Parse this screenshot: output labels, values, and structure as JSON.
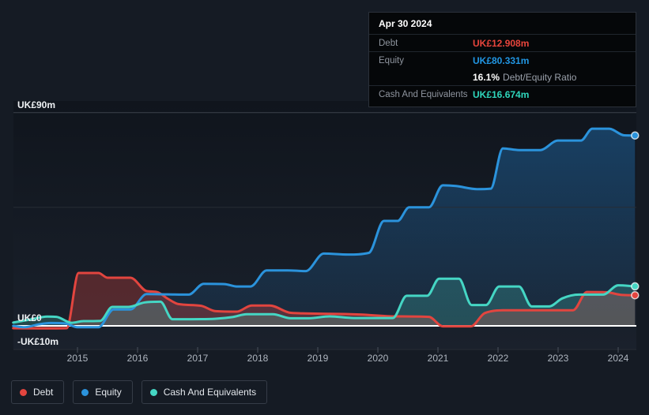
{
  "colors": {
    "debt": "#e2453f",
    "equity": "#2b93dc",
    "cash": "#45d6c4",
    "debt_fill": "rgba(226,69,63,0.30)",
    "equity_fill_top": "rgba(35,125,200,0.42)",
    "equity_fill_bottom": "rgba(35,125,200,0.10)",
    "cash_fill": "rgba(79,216,198,0.22)",
    "grid": "#3c434c",
    "grid_faint": "#262c35",
    "zero_line": "#ffffff",
    "tick": "#4a515c",
    "plot_bg_top": "#10151d",
    "plot_bg_bottom": "#1a212c"
  },
  "tooltip": {
    "date": "Apr 30 2024",
    "debt_label": "Debt",
    "debt_value": "UK£12.908m",
    "equity_label": "Equity",
    "equity_value": "UK£80.331m",
    "ratio_value": "16.1%",
    "ratio_label": "Debt/Equity Ratio",
    "cash_label": "Cash And Equivalents",
    "cash_value": "UK£16.674m"
  },
  "legend": {
    "items": [
      {
        "id": "debt",
        "label": "Debt"
      },
      {
        "id": "equity",
        "label": "Equity"
      },
      {
        "id": "cash",
        "label": "Cash And Equivalents"
      }
    ]
  },
  "axis": {
    "y_labels": [
      {
        "text": "UK£90m",
        "value": 90
      },
      {
        "text": "UK£0",
        "value": 0
      },
      {
        "text": "-UK£10m",
        "value": -10
      }
    ],
    "gridlines": [
      {
        "value": 90,
        "style": "normal"
      },
      {
        "value": 50,
        "style": "faint"
      },
      {
        "value": 0,
        "style": "zero"
      },
      {
        "value": -10,
        "style": "faint"
      }
    ],
    "x_ticks": [
      2015,
      2016,
      2017,
      2018,
      2019,
      2020,
      2021,
      2022,
      2023,
      2024
    ]
  },
  "chart_data": {
    "type": "area",
    "x_unit": "year",
    "xlim": [
      2013.93,
      2024.28
    ],
    "ylim": [
      -10,
      90
    ],
    "currency_unit": "UK£m",
    "legend_position": "bottom-left",
    "series": [
      {
        "name": "Equity",
        "color": "equity",
        "fill": "equity-gradient",
        "points": [
          [
            2013.93,
            0
          ],
          [
            2014.12,
            -0.6
          ],
          [
            2014.35,
            0.6
          ],
          [
            2014.55,
            1.2
          ],
          [
            2014.8,
            1.0
          ],
          [
            2015.0,
            -0.6
          ],
          [
            2015.35,
            -0.6
          ],
          [
            2015.6,
            6.9
          ],
          [
            2015.88,
            6.9
          ],
          [
            2016.15,
            13.4
          ],
          [
            2016.5,
            13.3
          ],
          [
            2016.85,
            13.2
          ],
          [
            2017.1,
            17.7
          ],
          [
            2017.45,
            17.6
          ],
          [
            2017.65,
            16.6
          ],
          [
            2017.88,
            16.6
          ],
          [
            2018.15,
            23.4
          ],
          [
            2018.5,
            23.4
          ],
          [
            2018.8,
            23.1
          ],
          [
            2019.1,
            30.5
          ],
          [
            2019.5,
            30.1
          ],
          [
            2019.85,
            30.8
          ],
          [
            2020.1,
            44.3
          ],
          [
            2020.33,
            44.3
          ],
          [
            2020.52,
            50.0
          ],
          [
            2020.85,
            50.0
          ],
          [
            2021.08,
            59.3
          ],
          [
            2021.3,
            59.0
          ],
          [
            2021.65,
            57.7
          ],
          [
            2021.88,
            57.9
          ],
          [
            2022.08,
            74.9
          ],
          [
            2022.35,
            74.2
          ],
          [
            2022.7,
            74.2
          ],
          [
            2023.0,
            78.2
          ],
          [
            2023.38,
            78.2
          ],
          [
            2023.57,
            83.2
          ],
          [
            2023.85,
            83.2
          ],
          [
            2024.1,
            80.4
          ],
          [
            2024.28,
            80.331
          ]
        ]
      },
      {
        "name": "Debt",
        "color": "debt",
        "fill": "debt",
        "points": [
          [
            2013.93,
            -1.0
          ],
          [
            2014.4,
            -1.1
          ],
          [
            2014.82,
            -1.0
          ],
          [
            2015.02,
            22.3
          ],
          [
            2015.35,
            22.3
          ],
          [
            2015.5,
            20.3
          ],
          [
            2015.88,
            20.3
          ],
          [
            2016.15,
            14.7
          ],
          [
            2016.32,
            14.3
          ],
          [
            2016.5,
            11.5
          ],
          [
            2016.68,
            9.2
          ],
          [
            2017.05,
            8.5
          ],
          [
            2017.3,
            6.2
          ],
          [
            2017.65,
            6.0
          ],
          [
            2017.9,
            8.6
          ],
          [
            2018.2,
            8.6
          ],
          [
            2018.55,
            5.5
          ],
          [
            2019.2,
            5.1
          ],
          [
            2019.7,
            4.8
          ],
          [
            2020.3,
            4.0
          ],
          [
            2020.85,
            3.8
          ],
          [
            2021.08,
            -0.2
          ],
          [
            2021.55,
            -0.2
          ],
          [
            2021.78,
            5.4
          ],
          [
            2022.15,
            6.6
          ],
          [
            2022.7,
            6.6
          ],
          [
            2023.25,
            6.6
          ],
          [
            2023.48,
            14.3
          ],
          [
            2023.8,
            14.2
          ],
          [
            2024.05,
            13.1
          ],
          [
            2024.28,
            12.908
          ]
        ]
      },
      {
        "name": "Cash And Equivalents",
        "color": "cash",
        "fill": "cash",
        "points": [
          [
            2013.93,
            1.4
          ],
          [
            2014.2,
            2.6
          ],
          [
            2014.5,
            3.9
          ],
          [
            2014.65,
            3.8
          ],
          [
            2014.9,
            1.3
          ],
          [
            2015.1,
            2.0
          ],
          [
            2015.38,
            2.1
          ],
          [
            2015.58,
            8.0
          ],
          [
            2015.85,
            8.0
          ],
          [
            2016.12,
            9.9
          ],
          [
            2016.38,
            10.2
          ],
          [
            2016.58,
            2.8
          ],
          [
            2016.9,
            2.8
          ],
          [
            2017.3,
            3.0
          ],
          [
            2017.58,
            3.7
          ],
          [
            2017.82,
            4.9
          ],
          [
            2018.25,
            4.9
          ],
          [
            2018.55,
            3.2
          ],
          [
            2018.85,
            3.2
          ],
          [
            2019.2,
            4.0
          ],
          [
            2019.6,
            3.3
          ],
          [
            2020.25,
            3.3
          ],
          [
            2020.48,
            12.7
          ],
          [
            2020.82,
            12.7
          ],
          [
            2021.02,
            19.9
          ],
          [
            2021.35,
            19.9
          ],
          [
            2021.56,
            8.8
          ],
          [
            2021.8,
            8.8
          ],
          [
            2022.02,
            16.6
          ],
          [
            2022.35,
            16.6
          ],
          [
            2022.56,
            8.2
          ],
          [
            2022.85,
            8.2
          ],
          [
            2023.07,
            11.6
          ],
          [
            2023.35,
            13.2
          ],
          [
            2023.75,
            13.2
          ],
          [
            2024.0,
            17.1
          ],
          [
            2024.28,
            16.674
          ]
        ]
      }
    ]
  }
}
